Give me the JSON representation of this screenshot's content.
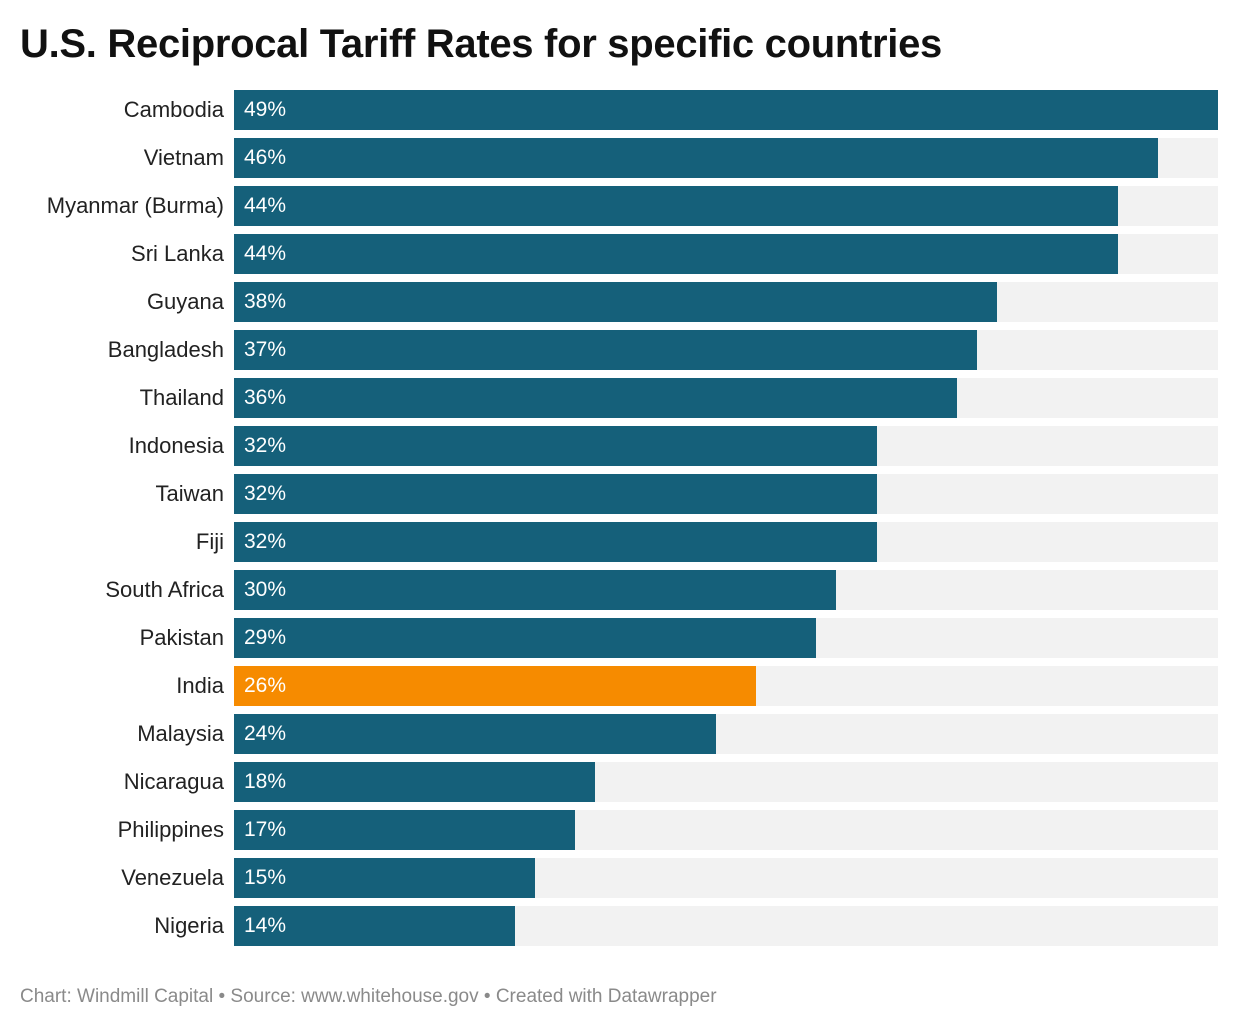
{
  "chart_data": {
    "type": "bar",
    "orientation": "horizontal",
    "title": "U.S. Reciprocal Tariff Rates for specific countries",
    "categories": [
      "Cambodia",
      "Vietnam",
      "Myanmar (Burma)",
      "Sri Lanka",
      "Guyana",
      "Bangladesh",
      "Thailand",
      "Indonesia",
      "Taiwan",
      "Fiji",
      "South Africa",
      "Pakistan",
      "India",
      "Malaysia",
      "Nicaragua",
      "Philippines",
      "Venezuela",
      "Nigeria"
    ],
    "values": [
      49,
      46,
      44,
      44,
      38,
      37,
      36,
      32,
      32,
      32,
      30,
      29,
      26,
      24,
      18,
      17,
      15,
      14
    ],
    "value_labels": [
      "49%",
      "46%",
      "44%",
      "44%",
      "38%",
      "37%",
      "36%",
      "32%",
      "32%",
      "32%",
      "30%",
      "29%",
      "26%",
      "24%",
      "18%",
      "17%",
      "15%",
      "14%"
    ],
    "highlight_category": "India",
    "xlim": [
      0,
      49
    ],
    "grid": false,
    "legend": "none",
    "colors": {
      "bar": "#15607a",
      "highlight": "#f68b00",
      "track": "#f2f2f2"
    }
  },
  "footer": {
    "credit": "Chart: Windmill Capital • Source: www.whitehouse.gov • Created with Datawrapper"
  }
}
